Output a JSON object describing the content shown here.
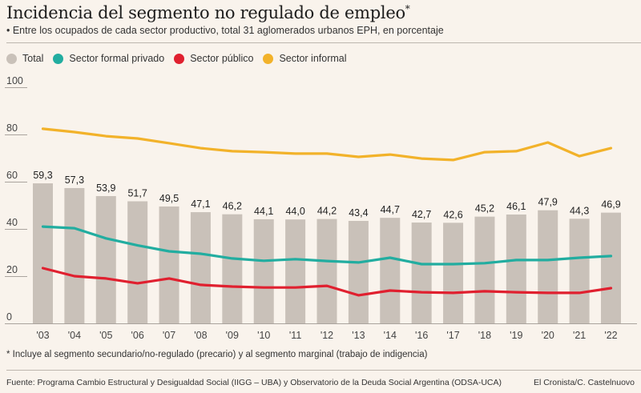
{
  "header": {
    "title": "Incidencia del segmento no regulado de empleo",
    "title_mark": "*",
    "subtitle": "• Entre los ocupados de cada sector productivo, total 31 aglomerados urbanos EPH, en porcentaje"
  },
  "legend": [
    {
      "label": "Total",
      "color": "#c9c1b9"
    },
    {
      "label": "Sector formal privado",
      "color": "#22ada0"
    },
    {
      "label": "Sector público",
      "color": "#e0202f"
    },
    {
      "label": "Sector informal",
      "color": "#f2b22a"
    }
  ],
  "chart_data": {
    "type": "bar",
    "title": "Incidencia del segmento no regulado de empleo",
    "xlabel": "",
    "ylabel": "",
    "ylim": [
      0,
      100
    ],
    "yticks": [
      0,
      20,
      40,
      60,
      80,
      100
    ],
    "grid": false,
    "legend_position": "top-left",
    "categories": [
      "'03",
      "'04",
      "'05",
      "'06",
      "'07",
      "'08",
      "'09",
      "'10",
      "'11",
      "'12",
      "'13",
      "'14",
      "'16",
      "'17",
      "'18",
      "'19",
      "'20",
      "'21",
      "'22"
    ],
    "series": [
      {
        "name": "Total",
        "type": "bar",
        "color": "#c9c1b9",
        "values": [
          59.3,
          57.3,
          53.9,
          51.7,
          49.5,
          47.1,
          46.2,
          44.1,
          44.0,
          44.2,
          43.4,
          44.7,
          42.7,
          42.6,
          45.2,
          46.1,
          47.9,
          44.3,
          46.9
        ],
        "labels": [
          "59,3",
          "57,3",
          "53,9",
          "51,7",
          "49,5",
          "47,1",
          "46,2",
          "44,1",
          "44,0",
          "44,2",
          "43,4",
          "44,7",
          "42,7",
          "42,6",
          "45,2",
          "46,1",
          "47,9",
          "44,3",
          "46,9"
        ]
      },
      {
        "name": "Sector formal privado",
        "type": "line",
        "color": "#22ada0",
        "values": [
          41.0,
          40.3,
          36.0,
          33.0,
          30.5,
          29.5,
          27.5,
          26.5,
          27.2,
          26.4,
          25.8,
          27.8,
          25.1,
          25.1,
          25.5,
          26.8,
          26.8,
          27.8,
          28.5
        ]
      },
      {
        "name": "Sector público",
        "type": "line",
        "color": "#e0202f",
        "values": [
          23.4,
          20.0,
          19.0,
          17.0,
          19.0,
          16.3,
          15.6,
          15.2,
          15.2,
          15.9,
          11.9,
          13.9,
          13.2,
          12.9,
          13.6,
          13.2,
          12.9,
          12.9,
          14.9
        ]
      },
      {
        "name": "Sector informal",
        "type": "line",
        "color": "#f2b22a",
        "values": [
          82.4,
          81.0,
          79.3,
          78.3,
          76.3,
          74.2,
          72.9,
          72.5,
          71.9,
          71.9,
          70.5,
          71.5,
          69.8,
          69.2,
          72.5,
          72.9,
          76.6,
          70.8,
          74.2
        ]
      }
    ]
  },
  "footer": {
    "footnote": "* Incluye al segmento secundario/no-regulado (precario) y al segmento marginal (trabajo de indigencia)",
    "source": "Fuente: Programa Cambio Estructural y Desigualdad Social (IIGG – UBA) y Observatorio de la Deuda Social Argentina (ODSA-UCA)",
    "credit": "El Cronista/C. Castelnuovo"
  }
}
